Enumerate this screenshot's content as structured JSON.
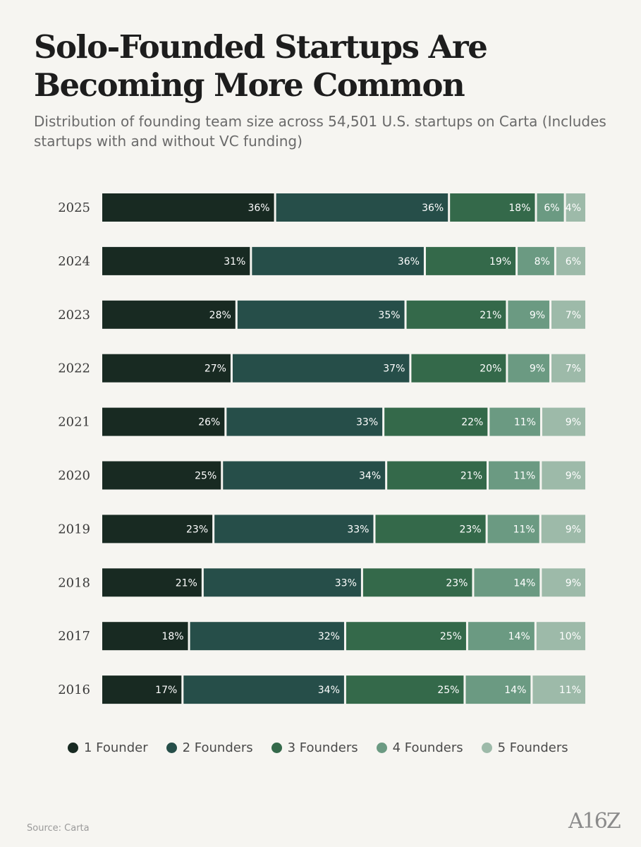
{
  "header": {
    "title": "Solo-Founded Startups Are Becoming More Common",
    "subtitle": "Distribution of founding team size across 54,501 U.S. startups on Carta (Includes startups with and without VC funding)"
  },
  "footer": {
    "source": "Source: Carta",
    "logo": "A16Z"
  },
  "chart_data": {
    "type": "bar",
    "orientation": "horizontal",
    "stacked": true,
    "normalized": true,
    "categories": [
      "2025",
      "2024",
      "2023",
      "2022",
      "2021",
      "2020",
      "2019",
      "2018",
      "2017",
      "2016"
    ],
    "series": [
      {
        "name": "1 Founder",
        "color": "#182a22",
        "values": [
          36,
          31,
          28,
          27,
          26,
          25,
          23,
          21,
          18,
          17
        ]
      },
      {
        "name": "2 Founders",
        "color": "#264e49",
        "values": [
          36,
          36,
          35,
          37,
          33,
          34,
          33,
          33,
          32,
          34
        ]
      },
      {
        "name": "3 Founders",
        "color": "#34694a",
        "values": [
          18,
          19,
          21,
          20,
          22,
          21,
          23,
          23,
          25,
          25
        ]
      },
      {
        "name": "4 Founders",
        "color": "#6b9a82",
        "values": [
          6,
          8,
          9,
          9,
          11,
          11,
          11,
          14,
          14,
          14
        ]
      },
      {
        "name": "5 Founders",
        "color": "#9dbaa9",
        "values": [
          4,
          6,
          7,
          7,
          9,
          9,
          9,
          9,
          10,
          11
        ]
      }
    ],
    "value_suffix": "%",
    "legend_position": "bottom",
    "grid": false
  }
}
